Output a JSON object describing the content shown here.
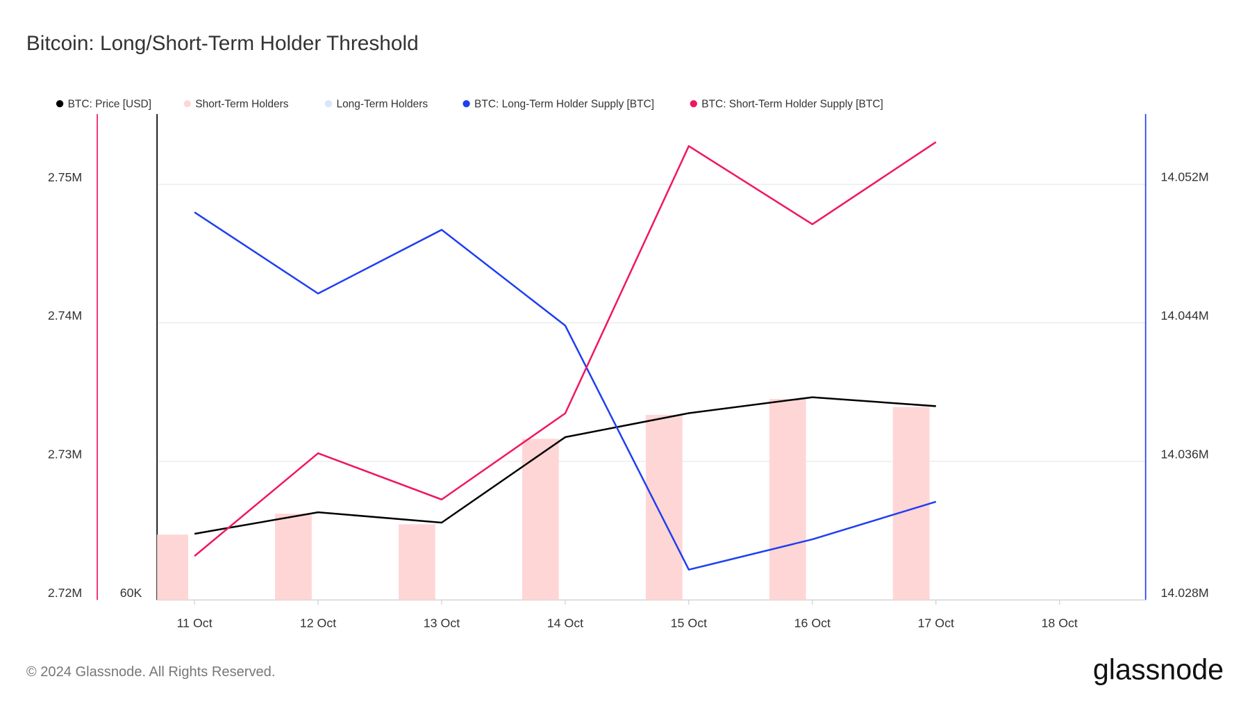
{
  "chart_data": {
    "type": "line",
    "title": "Bitcoin: Long/Short-Term Holder Threshold",
    "categories": [
      "11 Oct",
      "12 Oct",
      "13 Oct",
      "14 Oct",
      "15 Oct",
      "16 Oct",
      "17 Oct",
      "18 Oct"
    ],
    "series": [
      {
        "name": "BTC: Price [USD]",
        "kind": "line",
        "axis": "y3",
        "color": "#000000",
        "values": [
          62370,
          63140,
          62770,
          65830,
          66690,
          67260,
          66940,
          null
        ]
      },
      {
        "name": "Short-Term Holders",
        "kind": "bar",
        "axis": "y3",
        "color": "#ffd6d6",
        "values": [
          62340,
          63090,
          62710,
          65770,
          66630,
          67200,
          66910,
          null
        ]
      },
      {
        "name": "Long-Term Holders",
        "kind": "bar",
        "axis": "y3",
        "color": "#d6e6ff",
        "values": [
          null,
          null,
          null,
          null,
          null,
          null,
          null,
          null
        ]
      },
      {
        "name": "BTC: Long-Term Holder Supply [BTC]",
        "kind": "line",
        "axis": "y2",
        "color": "#1f3ff0",
        "values": [
          14050380,
          14045690,
          14049370,
          14043840,
          14029750,
          14031500,
          14033670,
          null
        ]
      },
      {
        "name": "BTC: Short-Term Holder Supply [BTC]",
        "kind": "line",
        "axis": "y",
        "color": "#f0175f",
        "values": [
          2723170,
          2730590,
          2727250,
          2733470,
          2752760,
          2747120,
          2753050,
          null
        ]
      }
    ],
    "ylim": [
      2720000,
      2755070
    ],
    "yticks": [
      {
        "value": 2720000,
        "label": "2.72M"
      },
      {
        "value": 2730000,
        "label": "2.73M"
      },
      {
        "value": 2740000,
        "label": "2.74M"
      },
      {
        "value": 2750000,
        "label": "2.75M"
      }
    ],
    "y2lim": [
      14028000,
      14056050
    ],
    "y2ticks": [
      {
        "value": 14028000,
        "label": "14.028M"
      },
      {
        "value": 14036000,
        "label": "14.036M"
      },
      {
        "value": 14044000,
        "label": "14.044M"
      },
      {
        "value": 14052000,
        "label": "14.052M"
      }
    ],
    "y3lim": [
      60000,
      77400
    ],
    "y3ticks": [
      {
        "value": 60000,
        "label": "60K"
      }
    ],
    "yaxis_color": "#f0175f",
    "y2axis_color": "#1f3ff0",
    "y3axis_color": "#000000",
    "grid": true,
    "legend": "top",
    "copyright": "© 2024 Glassnode. All Rights Reserved.",
    "brand": "glassnode"
  }
}
